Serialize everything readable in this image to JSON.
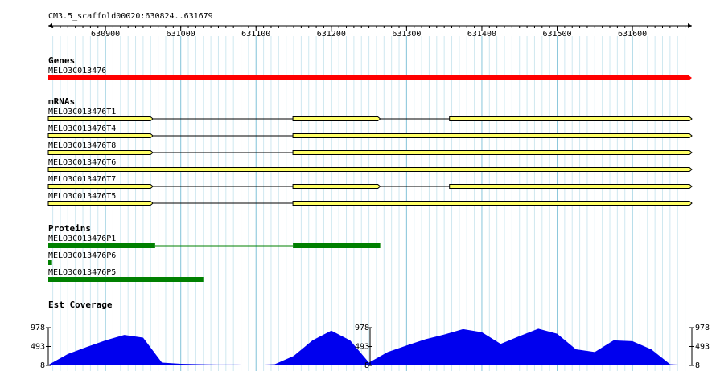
{
  "ruler": {
    "label": "CM3.5_scaffold00020:630824..631679",
    "range": [
      630824,
      631679
    ],
    "ticks": [
      630900,
      631000,
      631100,
      631200,
      631300,
      631400,
      631500,
      631600
    ]
  },
  "genes": {
    "title": "Genes",
    "color": "#ff0000",
    "features": [
      {
        "name": "MELO3C013476",
        "exons": [
          [
            630824,
            631679
          ]
        ]
      }
    ]
  },
  "mrnas": {
    "title": "mRNAs",
    "color": "#ffff66",
    "features": [
      {
        "name": "MELO3C013476T1",
        "exons": [
          [
            630824,
            630963
          ],
          [
            631149,
            631265
          ],
          [
            631357,
            631679
          ]
        ]
      },
      {
        "name": "MELO3C013476T4",
        "exons": [
          [
            630824,
            630963
          ],
          [
            631149,
            631679
          ]
        ]
      },
      {
        "name": "MELO3C013476T8",
        "exons": [
          [
            630824,
            630963
          ],
          [
            631149,
            631679
          ]
        ]
      },
      {
        "name": "MELO3C013476T6",
        "exons": [
          [
            630824,
            631679
          ]
        ]
      },
      {
        "name": "MELO3C013476T7",
        "exons": [
          [
            630824,
            630963
          ],
          [
            631149,
            631265
          ],
          [
            631357,
            631679
          ]
        ]
      },
      {
        "name": "MELO3C013476T5",
        "exons": [
          [
            630824,
            630963
          ],
          [
            631149,
            631679
          ]
        ]
      }
    ]
  },
  "proteins": {
    "title": "Proteins",
    "color": "#008000",
    "features": [
      {
        "name": "MELO3C013476P1",
        "exons": [
          [
            630824,
            630966
          ],
          [
            631149,
            631265
          ]
        ]
      },
      {
        "name": "MELO3C013476P6",
        "exons": [
          [
            630824,
            630829
          ]
        ]
      },
      {
        "name": "MELO3C013476P5",
        "exons": [
          [
            630824,
            631030
          ]
        ]
      }
    ]
  },
  "coverage": {
    "title": "Est Coverage",
    "color": "#0000ee",
    "ylim": [
      8,
      978
    ],
    "yticks": [
      978,
      493,
      8
    ],
    "positions": [
      630825,
      630850,
      630875,
      630900,
      630925,
      630950,
      630975,
      631000,
      631025,
      631050,
      631075,
      631100,
      631125,
      631150,
      631175,
      631200,
      631225,
      631250,
      631275,
      631300,
      631325,
      631350,
      631375,
      631400,
      631425,
      631450,
      631475,
      631500,
      631525,
      631550,
      631575,
      631600,
      631625,
      631650,
      631675
    ],
    "values": [
      30,
      300,
      480,
      650,
      790,
      720,
      80,
      50,
      40,
      30,
      30,
      20,
      40,
      250,
      650,
      900,
      650,
      80,
      350,
      520,
      680,
      800,
      940,
      860,
      560,
      760,
      950,
      820,
      420,
      350,
      650,
      630,
      420,
      40,
      15
    ]
  }
}
